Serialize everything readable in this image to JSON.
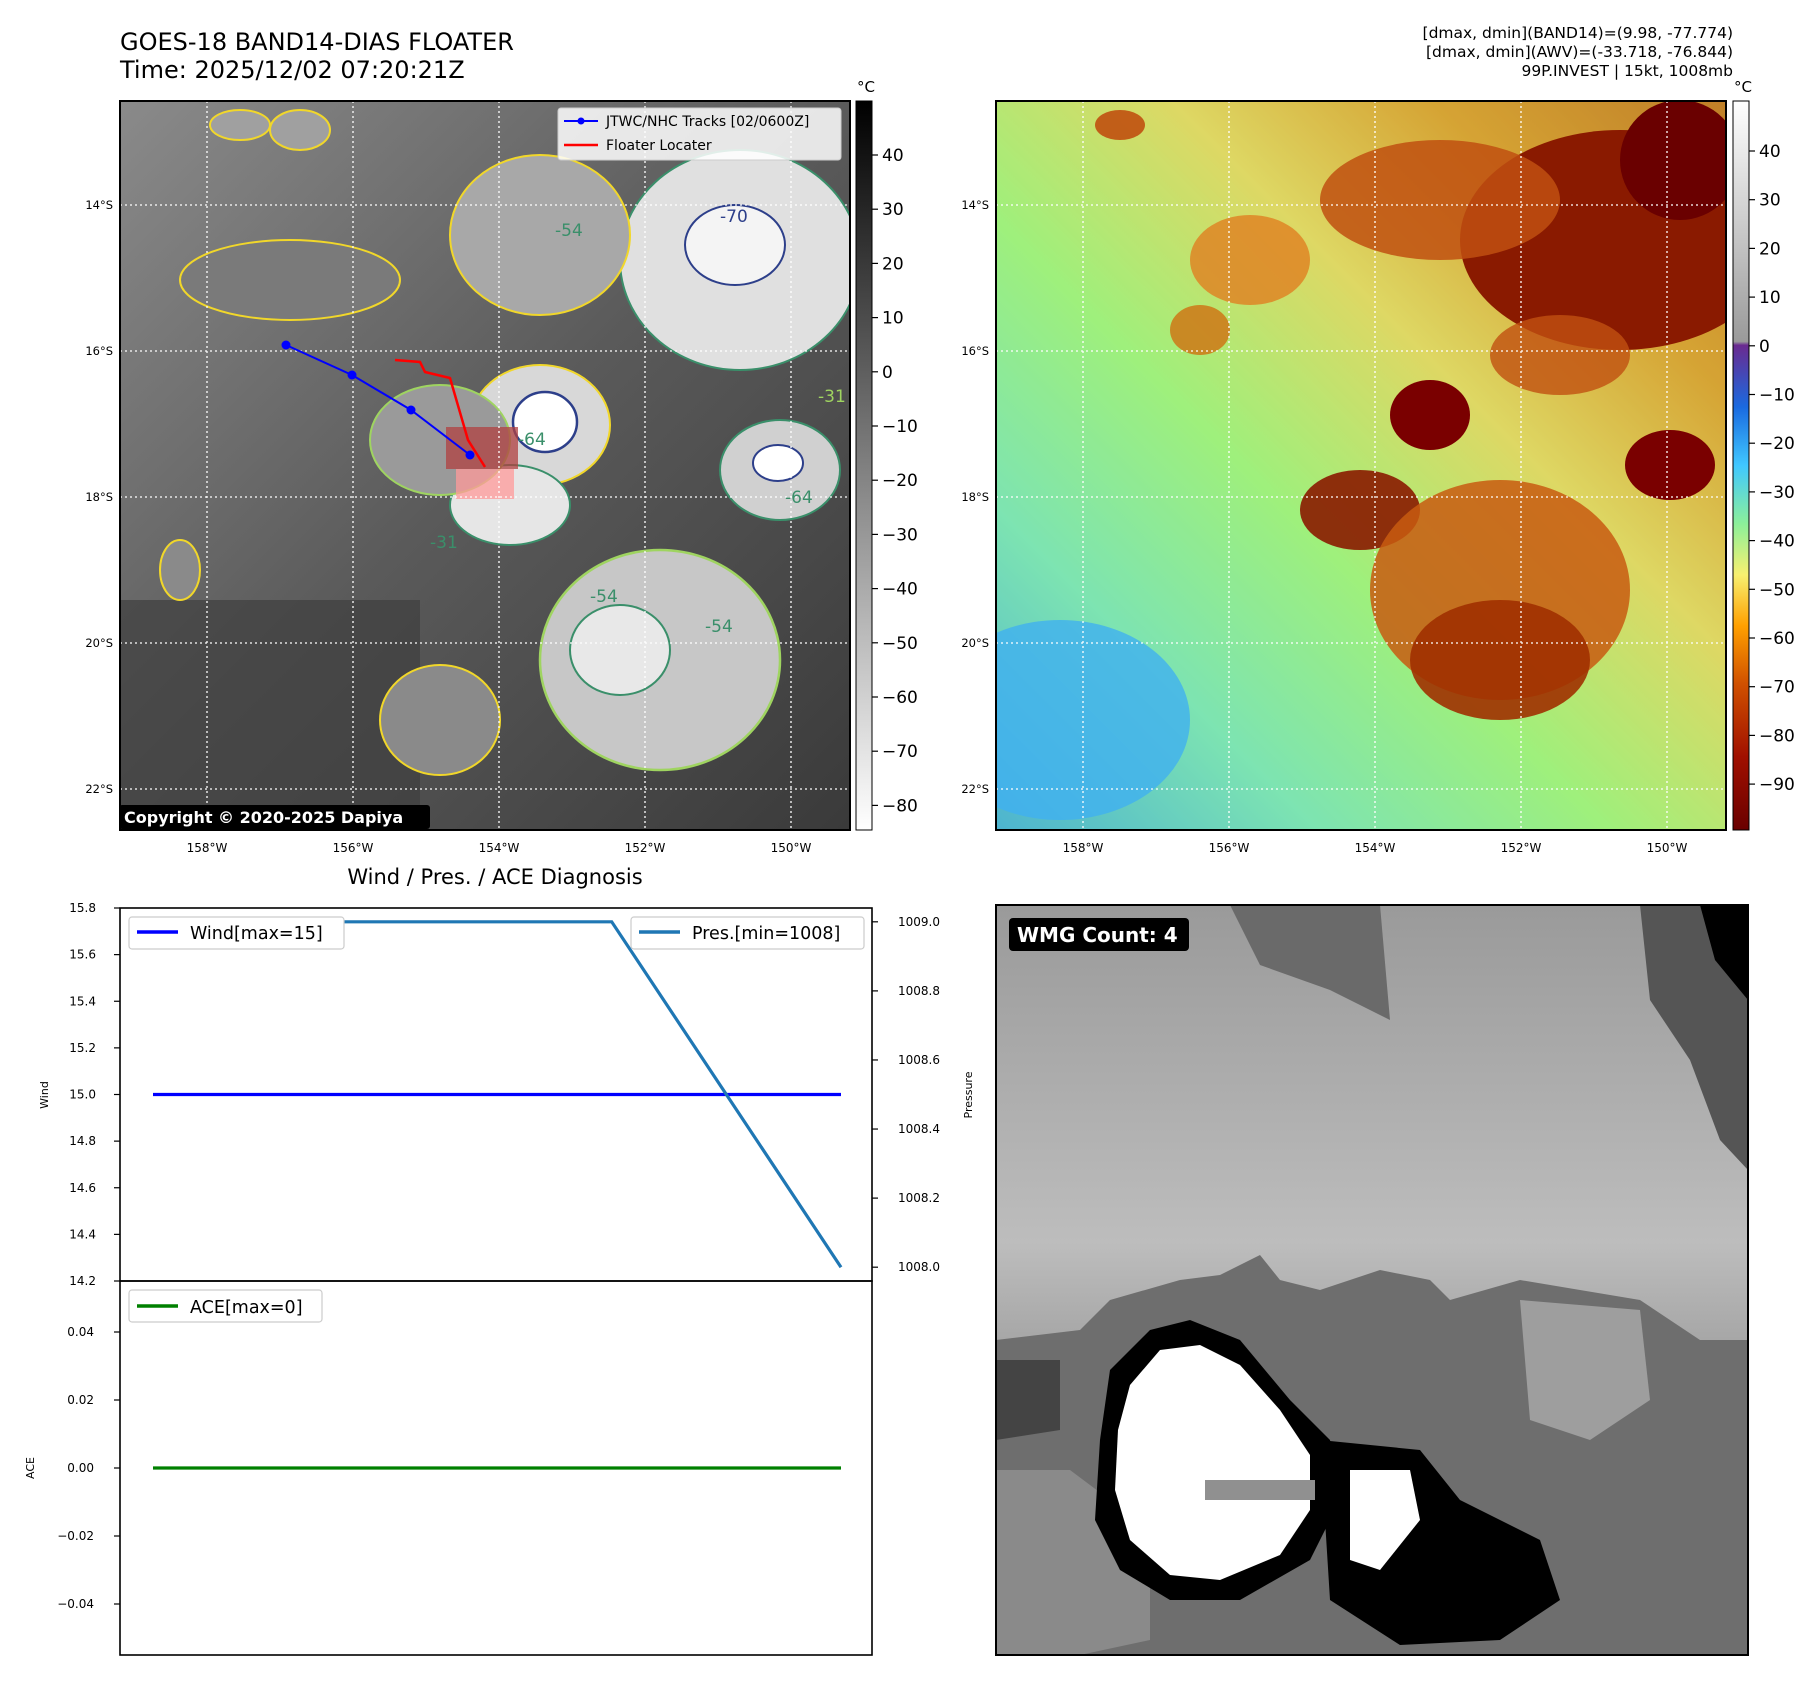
{
  "header": {
    "title_line1": "GOES-18 BAND14-DIAS FLOATER",
    "title_line2": "Time: 2025/12/02 07:20:21Z",
    "info_line1": "[dmax, dmin](BAND14)=(9.98, -77.774)",
    "info_line2": "[dmax, dmin](AWV)=(-33.718, -76.844)",
    "info_line3": "99P.INVEST | 15kt, 1008mb"
  },
  "maps": {
    "lat_labels": [
      "14°S",
      "16°S",
      "18°S",
      "20°S",
      "22°S"
    ],
    "lon_labels": [
      "158°W",
      "156°W",
      "154°W",
      "152°W",
      "150°W"
    ],
    "copyright": "Copyright © 2020-2025 Dapiya",
    "legend": {
      "tracks": "JTWC/NHC Tracks [02/0600Z]",
      "locater": "Floater Locater"
    },
    "contour_labels": [
      "-54",
      "-64",
      "-70",
      "-31",
      "-54",
      "-54",
      "-64",
      "-31"
    ],
    "left_colorbar": {
      "unit": "°C",
      "ticks": [
        "40",
        "30",
        "20",
        "10",
        "0",
        "−10",
        "−20",
        "−30",
        "−40",
        "−50",
        "−60",
        "−70",
        "−80"
      ]
    },
    "right_colorbar": {
      "unit": "°C",
      "ticks": [
        "40",
        "30",
        "20",
        "10",
        "0",
        "−10",
        "−20",
        "−30",
        "−40",
        "−50",
        "−60",
        "−70",
        "−80",
        "−90"
      ]
    }
  },
  "diag": {
    "title": "Wind / Pres. / ACE Diagnosis",
    "wind_axis_label": "Wind",
    "pres_axis_label": "Pressure",
    "ace_axis_label": "ACE",
    "wind_ticks": [
      "15.8",
      "15.6",
      "15.4",
      "15.2",
      "15.0",
      "14.8",
      "14.6",
      "14.4",
      "14.2"
    ],
    "pres_ticks": [
      "1009.0",
      "1008.8",
      "1008.6",
      "1008.4",
      "1008.2",
      "1008.0"
    ],
    "ace_ticks": [
      "0.04",
      "0.02",
      "0.00",
      "−0.02",
      "−0.04"
    ],
    "legend_wind": "Wind[max=15]",
    "legend_pres": "Pres.[min=1008]",
    "legend_ace": "ACE[max=0]"
  },
  "wmg": {
    "count_label": "WMG Count: 4"
  },
  "colors": {
    "wind": "#0000ff",
    "pressure": "#1f77b4",
    "ace": "#008000",
    "track": "#0000ff",
    "locater": "#ff0000"
  },
  "chart_data": [
    {
      "type": "line",
      "title": "Wind / Pres. / ACE Diagnosis",
      "ylabel": "Wind",
      "ylim": [
        14.2,
        15.8
      ],
      "series": [
        {
          "name": "Wind[max=15]",
          "x": [
            0,
            1,
            2,
            3
          ],
          "values": [
            15,
            15,
            15,
            15
          ]
        }
      ]
    },
    {
      "type": "line",
      "ylabel": "Pressure",
      "ylim": [
        1007.96,
        1009.04
      ],
      "series": [
        {
          "name": "Pres.[min=1008]",
          "x": [
            0,
            1,
            2,
            3
          ],
          "values": [
            1009,
            1009,
            1009,
            1008
          ]
        }
      ]
    },
    {
      "type": "line",
      "ylabel": "ACE",
      "ylim": [
        -0.055,
        0.055
      ],
      "series": [
        {
          "name": "ACE[max=0]",
          "x": [
            0,
            1,
            2,
            3
          ],
          "values": [
            0,
            0,
            0,
            0
          ]
        }
      ]
    }
  ]
}
